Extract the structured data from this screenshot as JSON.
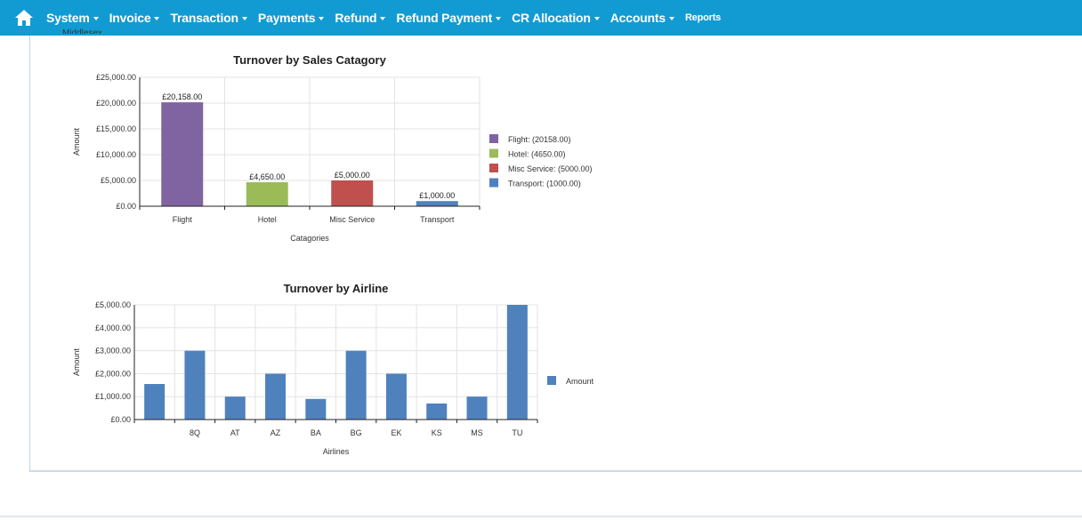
{
  "navbar": {
    "home_icon": "home-icon",
    "items": [
      {
        "label": "System",
        "dropdown": true
      },
      {
        "label": "Invoice",
        "dropdown": true
      },
      {
        "label": "Transaction",
        "dropdown": true
      },
      {
        "label": "Payments",
        "dropdown": true
      },
      {
        "label": "Refund",
        "dropdown": true
      },
      {
        "label": "Refund Payment",
        "dropdown": true
      },
      {
        "label": "CR Allocation",
        "dropdown": true
      },
      {
        "label": "Accounts",
        "dropdown": true
      },
      {
        "label": "Reports",
        "dropdown": false
      }
    ],
    "bg_color": "#129bd2"
  },
  "partial_text": "Middlesex",
  "chart_data": [
    {
      "type": "bar",
      "title": "Turnover by Sales Catagory",
      "xlabel": "Catagories",
      "ylabel": "Amount",
      "categories": [
        "Flight",
        "Hotel",
        "Misc Service",
        "Transport"
      ],
      "values": [
        20158,
        4650,
        5000,
        1000
      ],
      "data_labels": [
        "£20,158.00",
        "£4,650.00",
        "£5,000.00",
        "£1,000.00"
      ],
      "colors": [
        "#8064a2",
        "#9bbb59",
        "#c0504d",
        "#4f81bd"
      ],
      "ylim": [
        0,
        25000
      ],
      "yticks": [
        0,
        5000,
        10000,
        15000,
        20000,
        25000
      ],
      "ytick_labels": [
        "£0.00",
        "£5,000.00",
        "£10,000.00",
        "£15,000.00",
        "£20,000.00",
        "£25,000.00"
      ],
      "legend": [
        "Flight: (20158.00)",
        "Hotel: (4650.00)",
        "Misc Service: (5000.00)",
        "Transport: (1000.00)"
      ],
      "legend_position": "right",
      "grid": true
    },
    {
      "type": "bar",
      "title": "Turnover by Airline",
      "xlabel": "Airlines",
      "ylabel": "Amount",
      "categories": [
        "",
        "8Q",
        "AT",
        "AZ",
        "BA",
        "BG",
        "EK",
        "KS",
        "MS",
        "TU"
      ],
      "values": [
        1550,
        3000,
        1000,
        2000,
        900,
        3000,
        2000,
        700,
        1000,
        5000
      ],
      "color": "#4f81bd",
      "ylim": [
        0,
        5000
      ],
      "yticks": [
        0,
        1000,
        2000,
        3000,
        4000,
        5000
      ],
      "ytick_labels": [
        "£0.00",
        "£1,000.00",
        "£2,000.00",
        "£3,000.00",
        "£4,000.00",
        "£5,000.00"
      ],
      "legend": [
        "Amount"
      ],
      "legend_position": "right",
      "grid": true
    }
  ]
}
